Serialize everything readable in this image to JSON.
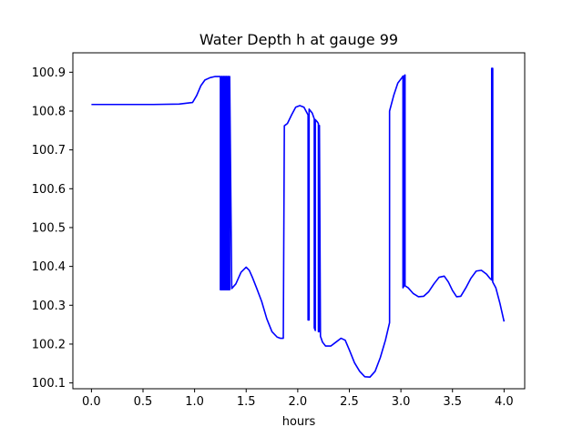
{
  "chart_data": {
    "type": "line",
    "title": "Water Depth h at gauge 99",
    "xlabel": "hours",
    "ylabel": "",
    "xlim": [
      -0.18,
      4.2
    ],
    "ylim": [
      100.085,
      100.95
    ],
    "x_ticks": [
      0.0,
      0.5,
      1.0,
      1.5,
      2.0,
      2.5,
      3.0,
      3.5,
      4.0
    ],
    "x_tick_labels": [
      "0.0",
      "0.5",
      "1.0",
      "1.5",
      "2.0",
      "2.5",
      "3.0",
      "3.5",
      "4.0"
    ],
    "y_ticks": [
      100.1,
      100.2,
      100.3,
      100.4,
      100.5,
      100.6,
      100.7,
      100.8,
      100.9
    ],
    "y_tick_labels": [
      "100.1",
      "100.2",
      "100.3",
      "100.4",
      "100.5",
      "100.6",
      "100.7",
      "100.8",
      "100.9"
    ],
    "grid": false,
    "legend": "none",
    "line_color": "#0000ff",
    "series": [
      {
        "x": [
          0.0,
          0.3,
          0.6,
          0.85,
          0.98,
          1.02,
          1.06,
          1.1,
          1.15,
          1.2,
          1.25,
          1.25,
          1.26,
          1.26,
          1.27,
          1.27,
          1.28,
          1.28,
          1.29,
          1.29,
          1.3,
          1.3,
          1.31,
          1.31,
          1.32,
          1.32,
          1.33,
          1.33,
          1.34,
          1.34,
          1.36,
          1.4,
          1.45,
          1.5,
          1.53,
          1.56,
          1.6,
          1.65,
          1.7,
          1.75,
          1.8,
          1.83,
          1.86,
          1.87,
          1.87,
          1.9,
          1.94,
          1.98,
          2.02,
          2.06,
          2.1,
          2.1,
          2.11,
          2.11,
          2.14,
          2.16,
          2.16,
          2.17,
          2.17,
          2.19,
          2.2,
          2.2,
          2.21,
          2.21,
          2.22,
          2.24,
          2.27,
          2.32,
          2.37,
          2.42,
          2.46,
          2.5,
          2.55,
          2.6,
          2.65,
          2.7,
          2.75,
          2.8,
          2.85,
          2.89,
          2.89,
          2.93,
          2.97,
          3.01,
          3.02,
          3.02,
          3.03,
          3.03,
          3.04,
          3.04,
          3.07,
          3.12,
          3.17,
          3.22,
          3.27,
          3.32,
          3.37,
          3.42,
          3.46,
          3.5,
          3.54,
          3.58,
          3.63,
          3.68,
          3.73,
          3.78,
          3.83,
          3.86,
          3.88,
          3.88,
          3.89,
          3.89,
          3.92,
          3.96,
          4.0
        ],
        "y": [
          100.817,
          100.817,
          100.817,
          100.818,
          100.822,
          100.84,
          100.865,
          100.88,
          100.886,
          100.889,
          100.889,
          100.34,
          100.34,
          100.889,
          100.889,
          100.34,
          100.34,
          100.889,
          100.889,
          100.34,
          100.34,
          100.889,
          100.889,
          100.34,
          100.34,
          100.889,
          100.889,
          100.34,
          100.34,
          100.889,
          100.343,
          100.355,
          100.385,
          100.398,
          100.39,
          100.372,
          100.345,
          100.31,
          100.265,
          100.232,
          100.218,
          100.215,
          100.215,
          100.762,
          100.762,
          100.768,
          100.79,
          100.81,
          100.814,
          100.81,
          100.79,
          100.262,
          100.262,
          100.805,
          100.795,
          100.78,
          100.242,
          100.235,
          100.778,
          100.772,
          100.768,
          100.232,
          100.232,
          100.763,
          100.22,
          100.205,
          100.195,
          100.195,
          100.205,
          100.215,
          100.21,
          100.185,
          100.152,
          100.13,
          100.116,
          100.115,
          100.13,
          100.165,
          100.21,
          100.255,
          100.8,
          100.84,
          100.872,
          100.886,
          100.89,
          100.345,
          100.35,
          100.89,
          100.893,
          100.35,
          100.345,
          100.33,
          100.322,
          100.323,
          100.335,
          100.355,
          100.372,
          100.375,
          100.36,
          100.338,
          100.322,
          100.323,
          100.345,
          100.37,
          100.388,
          100.39,
          100.38,
          100.37,
          100.365,
          100.91,
          100.91,
          100.36,
          100.345,
          100.305,
          100.258
        ]
      }
    ]
  }
}
